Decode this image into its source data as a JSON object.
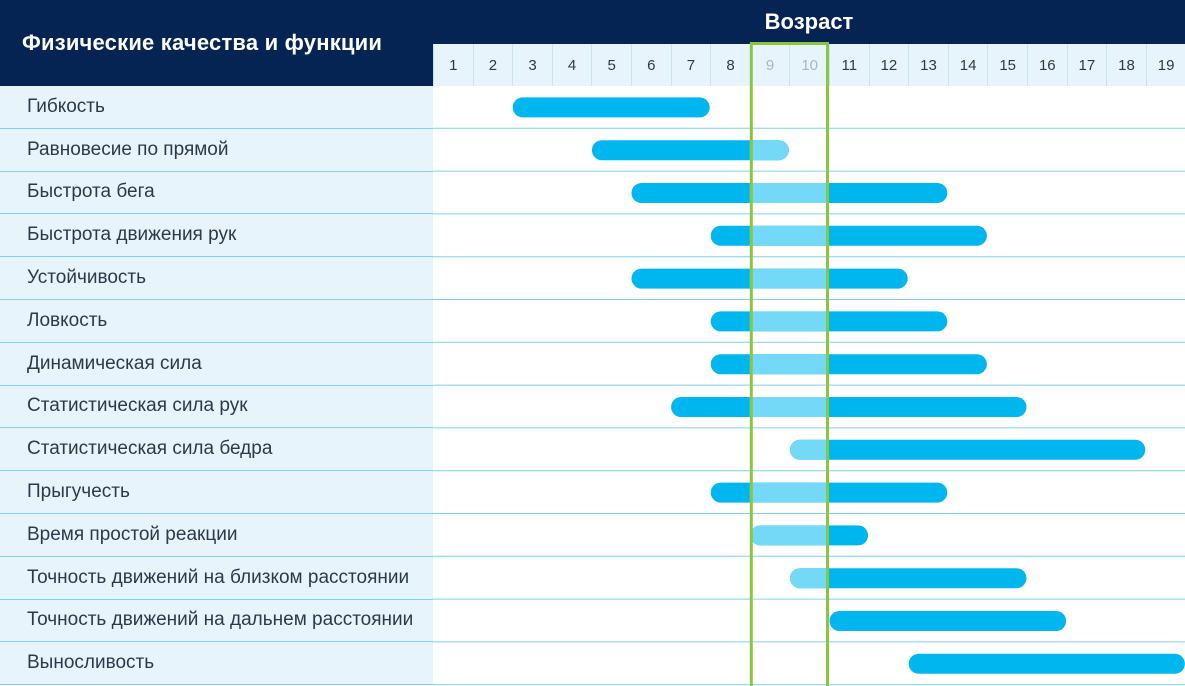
{
  "header": {
    "left_title": "Физические качества и функции",
    "right_title": "Возраст"
  },
  "colors": {
    "header_bg": "#062453",
    "bar": "#00b6ee",
    "bar_highlight": "#74d8f7",
    "highlight_border": "#8cc63f",
    "row_label_bg": "#e8f4fb",
    "row_line": "#7fd0ee"
  },
  "chart_data": {
    "type": "bar",
    "orientation": "horizontal-range",
    "ages": [
      "1",
      "2",
      "3",
      "4",
      "5",
      "6",
      "7",
      "8",
      "9",
      "10",
      "11",
      "12",
      "13",
      "14",
      "15",
      "16",
      "17",
      "18",
      "19"
    ],
    "highlight_ages": [
      9,
      10
    ],
    "rows": [
      {
        "label": "Гибкость",
        "start": 3,
        "end": 7
      },
      {
        "label": "Равновесие по прямой",
        "start": 5,
        "end": 9
      },
      {
        "label": "Быстрота бега",
        "start": 6,
        "end": 13
      },
      {
        "label": "Быстрота движения рук",
        "start": 8,
        "end": 14
      },
      {
        "label": "Устойчивость",
        "start": 6,
        "end": 12
      },
      {
        "label": "Ловкость",
        "start": 8,
        "end": 13
      },
      {
        "label": "Динамическая сила",
        "start": 8,
        "end": 14
      },
      {
        "label": "Статистическая сила рук",
        "start": 7,
        "end": 15
      },
      {
        "label": "Статистическая сила бедра",
        "start": 10,
        "end": 18
      },
      {
        "label": "Прыгучесть",
        "start": 8,
        "end": 13
      },
      {
        "label": "Время простой реакции",
        "start": 9,
        "end": 11
      },
      {
        "label": "Точность движений на близком расстоянии",
        "start": 10,
        "end": 15
      },
      {
        "label": "Точность движений на дальнем расстоянии",
        "start": 11,
        "end": 16
      },
      {
        "label": "Выносливость",
        "start": 13,
        "end": 19
      }
    ]
  }
}
